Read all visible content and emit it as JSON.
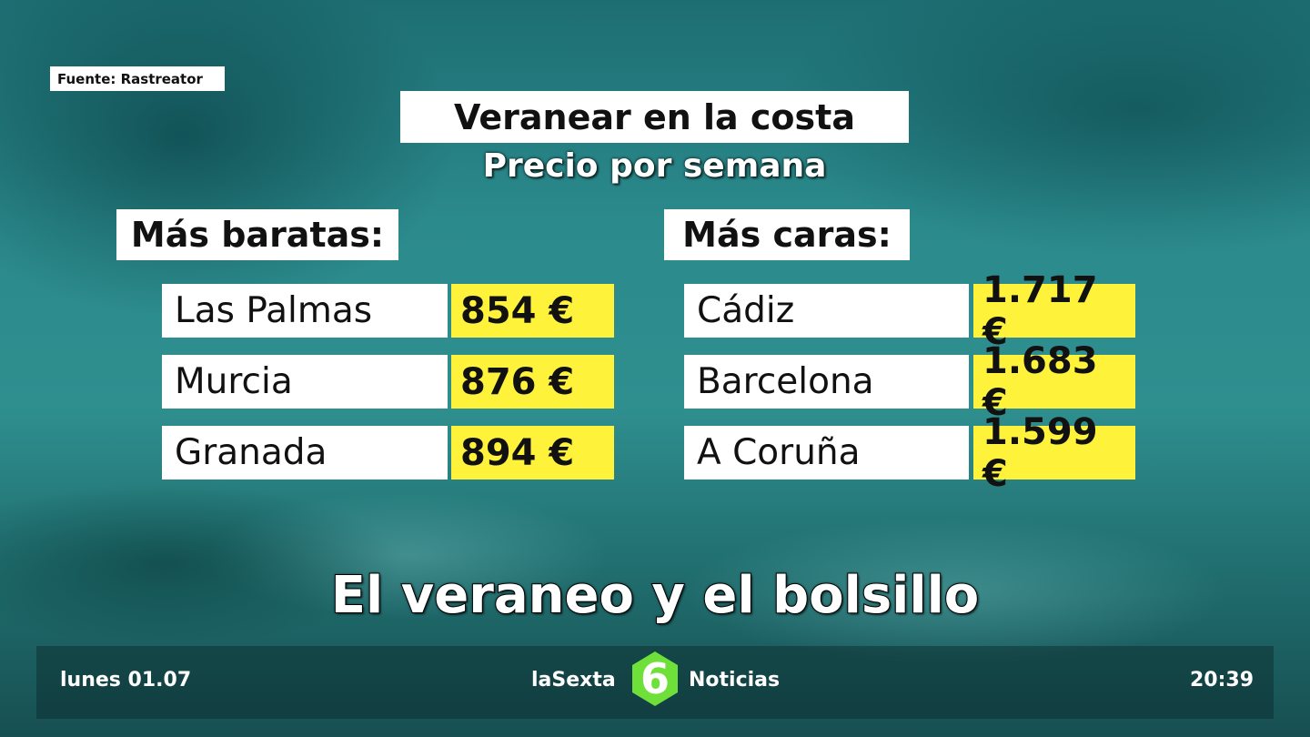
{
  "source": "Fuente: Rastreator",
  "title": "Veranear en la costa",
  "subtitle": "Precio por semana",
  "cheapest": {
    "heading": "Más baratas:",
    "rows": [
      [
        "Las Palmas",
        "854 €"
      ],
      [
        "Murcia",
        "876 €"
      ],
      [
        "Granada",
        "894 €"
      ]
    ]
  },
  "priciest": {
    "heading": "Más caras:",
    "rows": [
      [
        "Cádiz",
        "1.717 €"
      ],
      [
        "Barcelona",
        "1.683 €"
      ],
      [
        "A Coruña",
        "1.599 €"
      ]
    ]
  },
  "headline": "El veraneo y el bolsillo",
  "footer": {
    "date": "lunes 01.07",
    "channel": "laSexta",
    "logo": "6",
    "program": "Noticias",
    "time": "20:39"
  }
}
